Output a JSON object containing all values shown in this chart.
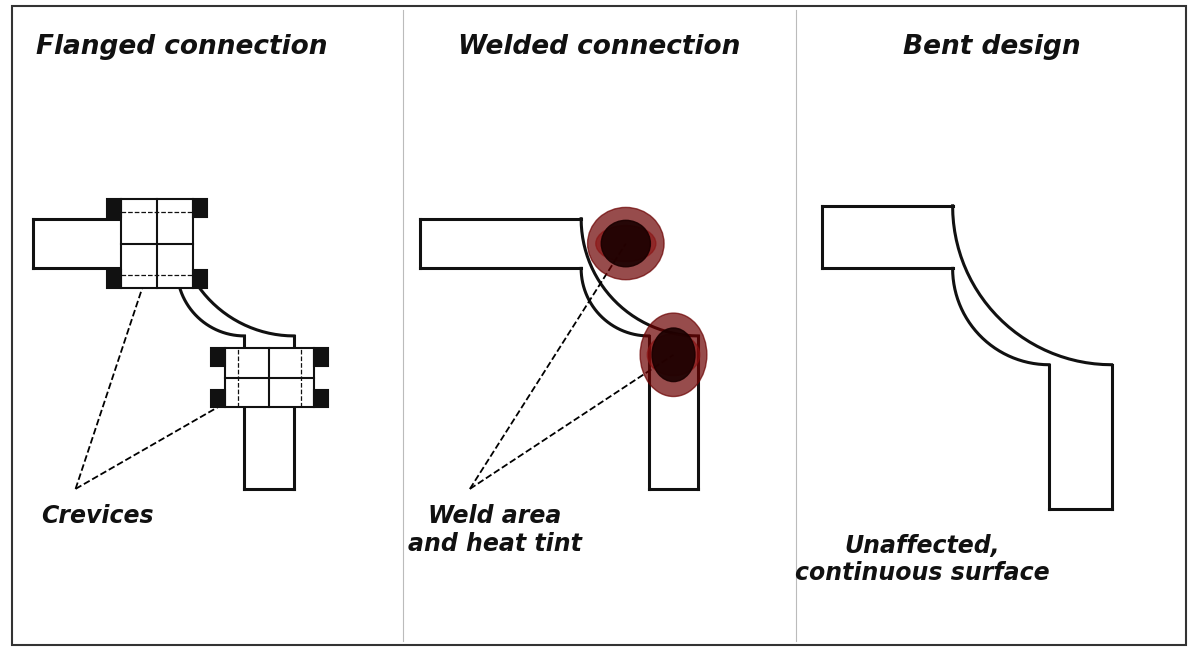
{
  "bg_color": "#ffffff",
  "border_color": "#333333",
  "title1": "Flanged connection",
  "title2": "Welded connection",
  "title3": "Bent design",
  "label1": "Crevices",
  "label2": "Weld area\nand heat tint",
  "label3": "Unaffected,\ncontinuous surface",
  "tube_color": "#ffffff",
  "tube_edge_color": "#111111",
  "tube_lw": 2.2,
  "title_fontsize": 19,
  "label_fontsize": 17,
  "panel_div_color": "#bbbbbb",
  "panel_div_lw": 0.8
}
